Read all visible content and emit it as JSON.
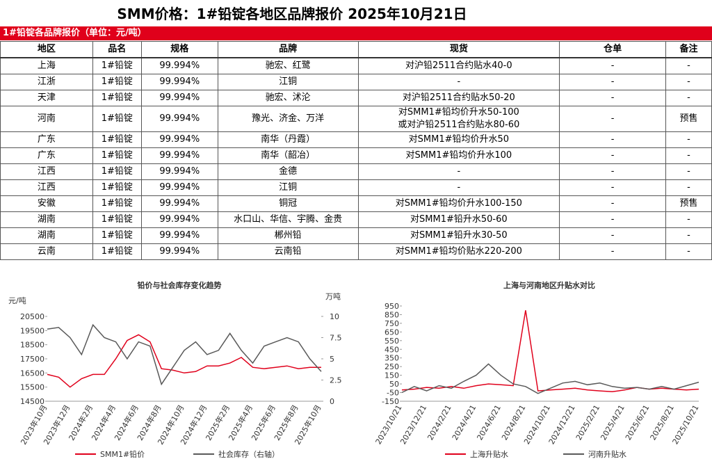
{
  "title": "SMM价格：1#铅锭各地区品牌报价 2025年10月21日",
  "table": {
    "caption": "1#铅锭各品牌报价（单位：元/吨）",
    "columns": [
      "地区",
      "品名",
      "规格",
      "品牌",
      "现货",
      "仓单",
      "备注"
    ],
    "rows": [
      [
        "上海",
        "1#铅锭",
        "99.994%",
        "驰宏、红鹭",
        "对沪铅2511合约贴水40-0",
        "-",
        "-"
      ],
      [
        "江浙",
        "1#铅锭",
        "99.994%",
        "江铜",
        "-",
        "-",
        "-"
      ],
      [
        "天津",
        "1#铅锭",
        "99.994%",
        "驰宏、沭沦",
        "对沪铅2511合约贴水50-20",
        "-",
        "-"
      ],
      [
        "河南",
        "1#铅锭",
        "99.994%",
        "豫光、济金、万洋",
        "对SMM1#铅均价升水50-100\n或对沪铅2511合约贴水80-60",
        "-",
        "预售"
      ],
      [
        "广东",
        "1#铅锭",
        "99.994%",
        "南华（丹霞）",
        "对SMM1#铅均价升水50",
        "-",
        "-"
      ],
      [
        "广东",
        "1#铅锭",
        "99.994%",
        "南华（韶冶）",
        "对SMM1#铅均价升水100",
        "-",
        "-"
      ],
      [
        "江西",
        "1#铅锭",
        "99.994%",
        "金德",
        "-",
        "-",
        "-"
      ],
      [
        "江西",
        "1#铅锭",
        "99.994%",
        "江铜",
        "-",
        "-",
        "-"
      ],
      [
        "安徽",
        "1#铅锭",
        "99.994%",
        "铜冠",
        "对SMM1#铅均价升水100-150",
        "-",
        "预售"
      ],
      [
        "湖南",
        "1#铅锭",
        "99.994%",
        "水口山、华信、宇腾、金贵",
        "对SMM1#铅升水50-60",
        "-",
        "-"
      ],
      [
        "湖南",
        "1#铅锭",
        "99.994%",
        "郴州铅",
        "对SMM1#铅升水30-50",
        "-",
        "-"
      ],
      [
        "云南",
        "1#铅锭",
        "99.994%",
        "云南铅",
        "对SMM1#铅均价贴水220-200",
        "-",
        "-"
      ]
    ]
  },
  "chart_data": [
    {
      "type": "line",
      "title": "铅价与社会库存变化趋势",
      "y_label": "元/吨",
      "y2_label": "万吨",
      "categories": [
        "2023年10月",
        null,
        "2023年12月",
        null,
        "2024年2月",
        null,
        "2024年4月",
        null,
        "2024年6月",
        null,
        "2024年8月",
        null,
        "2024年10月",
        null,
        "2024年12月",
        null,
        "2025年2月",
        null,
        "2025年4月",
        null,
        "2025年6月",
        null,
        "2025年8月",
        null,
        "2025年10月"
      ],
      "ylim": [
        14500,
        20500
      ],
      "yticks": [
        14500,
        15500,
        16500,
        17500,
        18500,
        19500,
        20500
      ],
      "y2lim": [
        0,
        10
      ],
      "y2ticks": [
        0,
        2.5,
        5,
        7.5,
        10
      ],
      "series": [
        {
          "name": "SMM1#铅价",
          "color": "#e0001b",
          "values": [
            16400,
            16200,
            15500,
            16100,
            16400,
            16400,
            17500,
            18800,
            19200,
            18700,
            16800,
            16700,
            16500,
            16600,
            17000,
            17000,
            17200,
            17600,
            16900,
            16800,
            16900,
            17000,
            16800,
            16900,
            16900
          ]
        },
        {
          "name": "社会库存（右轴）",
          "color": "#595959",
          "axis": "y2",
          "values": [
            8.5,
            8.7,
            7.5,
            5.5,
            9.0,
            7.5,
            7.0,
            5.0,
            7.0,
            6.5,
            2.0,
            4.0,
            6.0,
            7.0,
            5.5,
            6.0,
            8.0,
            6.0,
            4.5,
            6.5,
            7.0,
            7.5,
            7.0,
            5.0,
            3.5
          ]
        }
      ]
    },
    {
      "type": "line",
      "title": "上海与河南地区升贴水对比",
      "categories": [
        "2023/10/21",
        null,
        "2023/12/21",
        null,
        "2024/2/21",
        null,
        "2024/4/21",
        null,
        "2024/6/21",
        null,
        "2024/8/21",
        null,
        "2024/10/21",
        null,
        "2024/12/21",
        null,
        "2025/2/21",
        null,
        "2025/4/21",
        null,
        "2025/6/21",
        null,
        "2025/8/21",
        null,
        "2025/10/21"
      ],
      "ylim": [
        -150,
        950
      ],
      "yticks": [
        -150,
        -50,
        50,
        150,
        250,
        350,
        450,
        550,
        650,
        750,
        850,
        950
      ],
      "series": [
        {
          "name": "上海升贴水",
          "color": "#e0001b",
          "values": [
            -20,
            -10,
            10,
            0,
            20,
            0,
            30,
            50,
            40,
            30,
            900,
            -30,
            -20,
            -10,
            0,
            -20,
            -30,
            -40,
            -20,
            10,
            -10,
            0,
            -10,
            -20,
            -10
          ]
        },
        {
          "name": "河南升贴水",
          "color": "#595959",
          "values": [
            -50,
            20,
            -30,
            30,
            0,
            80,
            150,
            280,
            150,
            50,
            20,
            -60,
            0,
            60,
            80,
            40,
            60,
            20,
            0,
            10,
            -10,
            20,
            -10,
            30,
            70
          ]
        }
      ]
    }
  ]
}
